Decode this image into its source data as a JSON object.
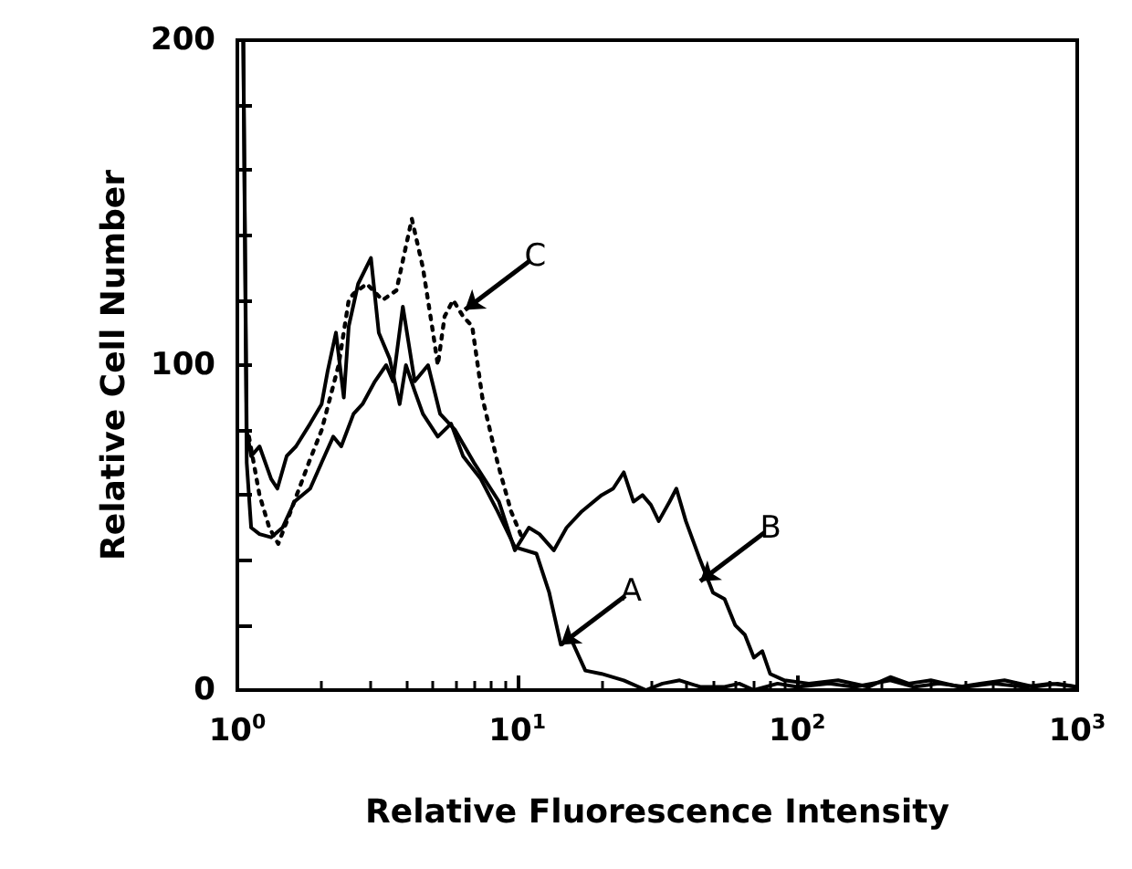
{
  "chart_data": {
    "type": "line",
    "xlabel": "Relative Fluorescence Intensity",
    "ylabel": "Relative Cell Number",
    "log": "x",
    "grid": false,
    "marker": "none",
    "xlim": [
      1,
      1000
    ],
    "xticks": [
      {
        "value": 1,
        "label": "10$^{0}$"
      },
      {
        "value": 10,
        "label": "10$^{1}$"
      },
      {
        "value": 100,
        "label": "10$^{2}$"
      },
      {
        "value": 1000,
        "label": "10$^{3}$"
      }
    ],
    "ylim": [
      0,
      200
    ],
    "yticks": [
      0,
      {
        "value": 20,
        "label": null
      },
      {
        "value": 40,
        "label": null
      },
      {
        "value": 60,
        "label": null
      },
      {
        "value": 80,
        "label": null
      },
      100,
      {
        "value": 120,
        "label": null
      },
      {
        "value": 140,
        "label": null
      },
      {
        "value": 160,
        "label": null
      },
      {
        "value": 180,
        "label": null
      },
      200
    ],
    "series": [
      {
        "color": "#000000",
        "line_style": "solid",
        "x": [
          1.05,
          1.08,
          1.12,
          1.2,
          1.32,
          1.39,
          1.5,
          1.62,
          1.82,
          2.0,
          2.1,
          2.25,
          2.4,
          2.5,
          2.7,
          3.0,
          3.2,
          3.5,
          3.8,
          4.0,
          4.3,
          4.6,
          5.2,
          5.8,
          6.4,
          7.4,
          8.5,
          9.8,
          11.7,
          13,
          14.3,
          15.5,
          17.5,
          20,
          24,
          28.8,
          33,
          38,
          45,
          55,
          62,
          70,
          85,
          100,
          130,
          160,
          215,
          260,
          320,
          400,
          500,
          650,
          800,
          1000
        ],
        "values": [
          200,
          80,
          72,
          75,
          65,
          62,
          72,
          75,
          82,
          88,
          98,
          110,
          90,
          112,
          125,
          133,
          110,
          102,
          88,
          100,
          92,
          85,
          78,
          82,
          72,
          65,
          55,
          44,
          42,
          30,
          14,
          16,
          6,
          5,
          3,
          0,
          2,
          3,
          1,
          1,
          2,
          0,
          2,
          1,
          2,
          1,
          3,
          1,
          2,
          1,
          2,
          1,
          2,
          1
        ]
      },
      {
        "color": "#000000",
        "line_style": "solid",
        "x": [
          1.05,
          1.08,
          1.12,
          1.2,
          1.32,
          1.45,
          1.6,
          1.82,
          2.0,
          2.2,
          2.35,
          2.6,
          2.8,
          3.1,
          3.4,
          3.6,
          3.9,
          4.3,
          4.8,
          5.3,
          6,
          7,
          8.6,
          9.8,
          11,
          12,
          13.5,
          15,
          17,
          20,
          22,
          24,
          26,
          28,
          30,
          32,
          35,
          37,
          40,
          45,
          50,
          55,
          60,
          65,
          70,
          75,
          80,
          90,
          110,
          140,
          180,
          215,
          250,
          300,
          380,
          450,
          550,
          700,
          850,
          1000
        ],
        "values": [
          200,
          70,
          50,
          48,
          47,
          50,
          58,
          62,
          70,
          78,
          75,
          85,
          88,
          95,
          100,
          95,
          118,
          95,
          100,
          85,
          80,
          70,
          58,
          43,
          50,
          48,
          43,
          50,
          55,
          60,
          62,
          67,
          58,
          60,
          57,
          52,
          58,
          62,
          52,
          40,
          30,
          28,
          20,
          17,
          10,
          12,
          5,
          3,
          2,
          3,
          1,
          4,
          2,
          3,
          1,
          2,
          3,
          1,
          2,
          1
        ]
      },
      {
        "color": "#000000",
        "line_style": "dotted",
        "x": [
          1.1,
          1.2,
          1.3,
          1.4,
          1.55,
          1.8,
          2.0,
          2.3,
          2.5,
          2.6,
          2.9,
          3.3,
          3.7,
          4.2,
          4.6,
          5.0,
          5.2,
          5.5,
          5.9,
          6.4,
          6.9,
          7.5,
          8.5,
          9.5,
          10.5
        ],
        "values": [
          78,
          60,
          50,
          45,
          55,
          70,
          80,
          100,
          120,
          122,
          125,
          120,
          123,
          145,
          130,
          110,
          100,
          115,
          120,
          115,
          112,
          90,
          70,
          55,
          46
        ]
      }
    ],
    "annotations": [
      {
        "text": "A",
        "x": 14.3,
        "y": 14
      },
      {
        "text": "B",
        "x": 45,
        "y": 33.5
      },
      {
        "text": "C",
        "x": 6.5,
        "y": 117
      }
    ]
  }
}
